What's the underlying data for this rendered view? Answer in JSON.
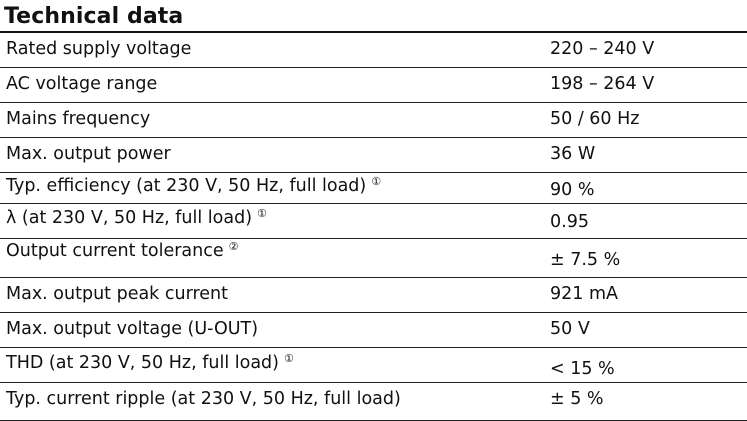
{
  "document": {
    "title": "Technical data",
    "rows": [
      {
        "label": "Rated supply voltage",
        "note": "",
        "value": "220 – 240 V"
      },
      {
        "label": "AC voltage range",
        "note": "",
        "value": "198 – 264 V"
      },
      {
        "label": "Mains frequency",
        "note": "",
        "value": "50 / 60 Hz"
      },
      {
        "label": "Max. output power",
        "note": "",
        "value": "36 W"
      },
      {
        "label": "Typ. efficiency (at 230 V, 50 Hz, full load)",
        "note": "①",
        "value": "90 %"
      },
      {
        "label": "λ (at 230 V, 50 Hz, full load)",
        "note": "①",
        "value": "0.95"
      },
      {
        "label": "Output current tolerance",
        "note": "②",
        "value": "± 7.5 %"
      },
      {
        "label": "Max. output peak current",
        "note": "",
        "value": "921 mA"
      },
      {
        "label": "Max. output voltage (U-OUT)",
        "note": "",
        "value": "50 V"
      },
      {
        "label": "THD (at 230 V, 50 Hz, full load)",
        "note": "①",
        "value": "< 15 %"
      },
      {
        "label": "Typ. current ripple (at 230 V, 50 Hz, full load)",
        "note": "",
        "value": "± 5 %"
      }
    ]
  }
}
